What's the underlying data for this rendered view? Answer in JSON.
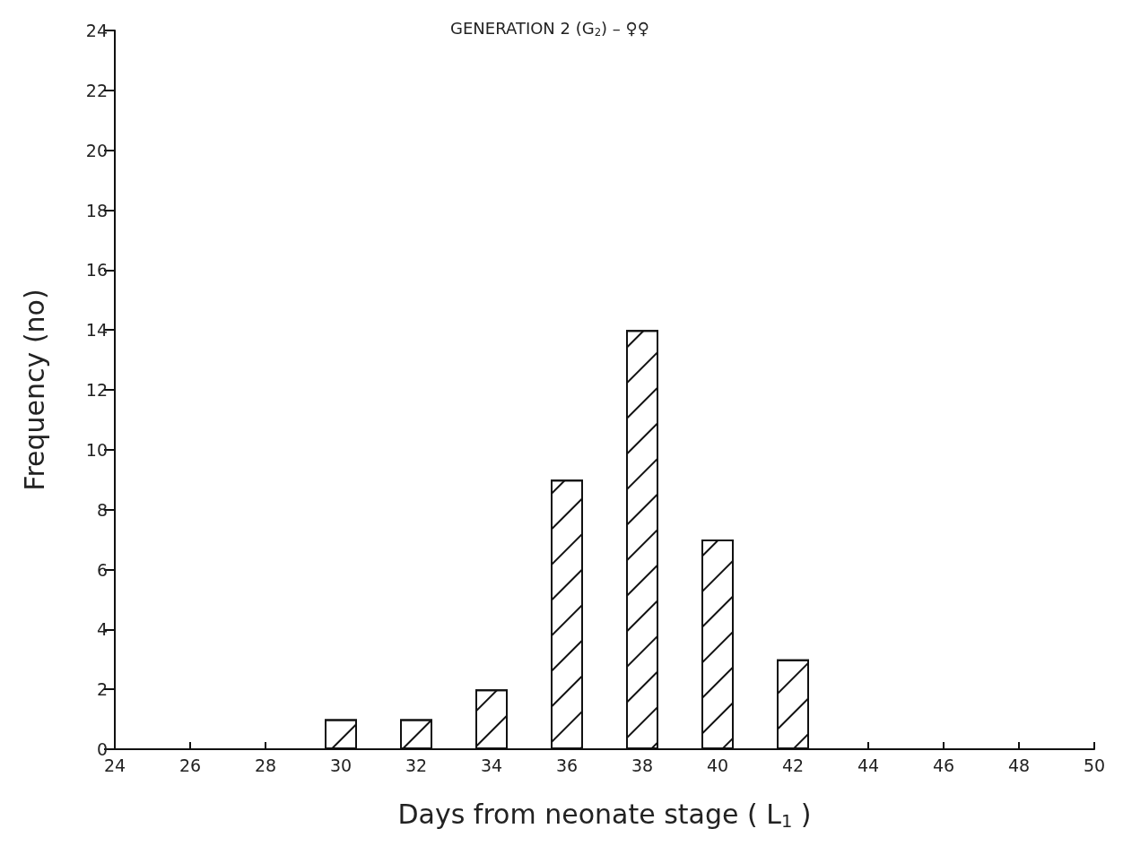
{
  "chart_data": {
    "type": "bar",
    "title": "GENERATION 2 (G$_{2}$) – ♀♀",
    "xlabel": "Days from neonate stage ( L$_{1}$ )",
    "ylabel": "Frequency (no)",
    "x": [
      30,
      32,
      34,
      36,
      38,
      40,
      42
    ],
    "values": [
      1,
      1,
      2,
      9,
      14,
      7,
      3
    ],
    "color": "#ffffff",
    "xlim": [
      24,
      50
    ],
    "xticks": [
      24,
      26,
      28,
      30,
      32,
      34,
      36,
      38,
      40,
      42,
      44,
      46,
      48,
      50
    ],
    "ylim": [
      0,
      24
    ],
    "yticks": [
      0,
      2,
      4,
      6,
      8,
      10,
      12,
      14,
      16,
      18,
      20,
      22,
      24
    ],
    "grid": false
  }
}
